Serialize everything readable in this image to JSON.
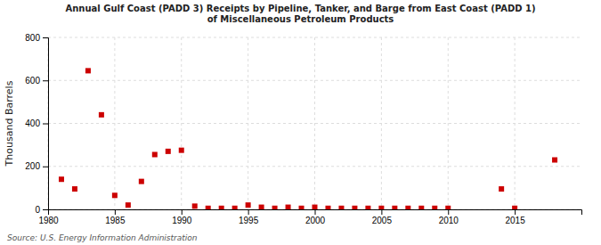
{
  "chart_data": {
    "type": "scatter",
    "title": "Annual Gulf Coast (PADD 3) Receipts by Pipeline, Tanker, and Barge from East Coast (PADD 1)\nof Miscellaneous Petroleum Products",
    "ylabel": "Thousand Barrels",
    "source": "Source: U.S. Energy Information Administration",
    "x": [
      1981,
      1982,
      1983,
      1984,
      1985,
      1986,
      1987,
      1988,
      1989,
      1990,
      1991,
      1992,
      1993,
      1994,
      1995,
      1996,
      1997,
      1998,
      1999,
      2000,
      2001,
      2002,
      2003,
      2004,
      2005,
      2006,
      2007,
      2008,
      2009,
      2010,
      2014,
      2015,
      2018
    ],
    "values": [
      140,
      95,
      645,
      440,
      65,
      20,
      130,
      255,
      270,
      275,
      15,
      5,
      5,
      5,
      20,
      10,
      5,
      10,
      5,
      10,
      5,
      5,
      5,
      5,
      5,
      5,
      5,
      5,
      5,
      5,
      95,
      5,
      230
    ],
    "color": "#cc0000",
    "marker": "square",
    "xlim": [
      1980,
      2020
    ],
    "xticks": [
      1980,
      1985,
      1990,
      1995,
      2000,
      2005,
      2010,
      2015
    ],
    "ylim": [
      0,
      800
    ],
    "yticks": [
      0,
      200,
      400,
      600,
      800
    ],
    "grid": true
  }
}
